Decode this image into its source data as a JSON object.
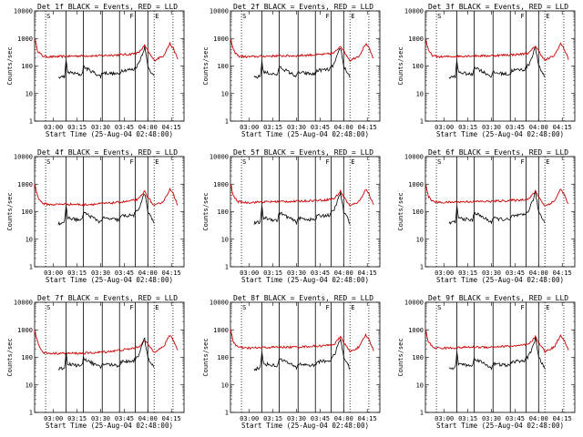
{
  "figure": {
    "panel_titles": [
      "Det 1f BLACK = Events, RED = LLD",
      "Det 2f BLACK = Events, RED = LLD",
      "Det 3f BLACK = Events, RED = LLD",
      "Det 4f BLACK = Events, RED = LLD",
      "Det 5f BLACK = Events, RED = LLD",
      "Det 6f BLACK = Events, RED = LLD",
      "Det 7f BLACK = Events, RED = LLD",
      "Det 8f BLACK = Events, RED = LLD",
      "Det 9f BLACK = Events, RED = LLD"
    ],
    "ylabel": "Counts/sec",
    "xlabel": "Start Time (25-Aug-04 02:48:00)",
    "xtick_labels": [
      "03:00",
      "03:15",
      "03:30",
      "03:45",
      "04:00",
      "04:15"
    ],
    "ytick_labels": [
      "1",
      "10",
      "100",
      "1000",
      "10000"
    ],
    "corner_labels": [
      "S",
      "F",
      "E"
    ]
  },
  "colors": {
    "events": "#000000",
    "lld": "#cc0000"
  },
  "chart_data": {
    "type": "line",
    "layout": "3x3 grid",
    "x_unit": "minutes since 02:48:00",
    "xlim": [
      0,
      95
    ],
    "ylim": [
      1,
      10000
    ],
    "yscale": "log",
    "xticks": [
      12,
      27,
      42,
      57,
      72,
      87
    ],
    "dotted_vlines": [
      7,
      76,
      88
    ],
    "solid_vlines": [
      20,
      31,
      43,
      54,
      64,
      72
    ],
    "panels": [
      {
        "det": "1f",
        "lld_points": [
          [
            0,
            1000
          ],
          [
            2,
            350
          ],
          [
            5,
            230
          ],
          [
            10,
            215
          ],
          [
            20,
            225
          ],
          [
            30,
            235
          ],
          [
            40,
            235
          ],
          [
            50,
            250
          ],
          [
            60,
            265
          ],
          [
            66,
            300
          ],
          [
            70,
            550
          ],
          [
            72,
            350
          ],
          [
            76,
            160
          ],
          [
            82,
            240
          ],
          [
            86,
            650
          ],
          [
            88,
            450
          ],
          [
            91,
            180
          ]
        ],
        "events_points": [
          [
            15,
            38
          ],
          [
            19,
            42
          ],
          [
            20,
            150
          ],
          [
            21,
            60
          ],
          [
            30,
            48
          ],
          [
            31,
            95
          ],
          [
            42,
            42
          ],
          [
            43,
            58
          ],
          [
            54,
            50
          ],
          [
            55,
            70
          ],
          [
            63,
            75
          ],
          [
            66,
            120
          ],
          [
            70,
            480
          ],
          [
            72,
            100
          ],
          [
            76,
            40
          ]
        ]
      },
      {
        "det": "2f",
        "lld_points": [
          [
            0,
            1000
          ],
          [
            2,
            350
          ],
          [
            5,
            230
          ],
          [
            10,
            215
          ],
          [
            20,
            225
          ],
          [
            30,
            235
          ],
          [
            40,
            235
          ],
          [
            50,
            250
          ],
          [
            60,
            265
          ],
          [
            66,
            300
          ],
          [
            70,
            550
          ],
          [
            72,
            350
          ],
          [
            76,
            160
          ],
          [
            82,
            240
          ],
          [
            86,
            650
          ],
          [
            88,
            450
          ],
          [
            91,
            180
          ]
        ],
        "events_points": [
          [
            15,
            38
          ],
          [
            19,
            42
          ],
          [
            20,
            150
          ],
          [
            21,
            60
          ],
          [
            30,
            48
          ],
          [
            31,
            95
          ],
          [
            42,
            42
          ],
          [
            43,
            58
          ],
          [
            54,
            50
          ],
          [
            55,
            70
          ],
          [
            63,
            75
          ],
          [
            66,
            120
          ],
          [
            70,
            480
          ],
          [
            72,
            100
          ],
          [
            76,
            40
          ]
        ]
      },
      {
        "det": "3f",
        "lld_points": [
          [
            0,
            1000
          ],
          [
            2,
            350
          ],
          [
            5,
            230
          ],
          [
            10,
            215
          ],
          [
            20,
            225
          ],
          [
            30,
            235
          ],
          [
            40,
            235
          ],
          [
            50,
            250
          ],
          [
            60,
            265
          ],
          [
            66,
            300
          ],
          [
            70,
            550
          ],
          [
            72,
            350
          ],
          [
            76,
            160
          ],
          [
            82,
            240
          ],
          [
            86,
            650
          ],
          [
            88,
            450
          ],
          [
            91,
            180
          ]
        ],
        "events_points": [
          [
            15,
            38
          ],
          [
            19,
            42
          ],
          [
            20,
            150
          ],
          [
            21,
            60
          ],
          [
            30,
            48
          ],
          [
            31,
            95
          ],
          [
            42,
            42
          ],
          [
            43,
            58
          ],
          [
            54,
            50
          ],
          [
            55,
            70
          ],
          [
            63,
            75
          ],
          [
            66,
            120
          ],
          [
            70,
            480
          ],
          [
            72,
            100
          ],
          [
            76,
            40
          ]
        ]
      },
      {
        "det": "4f",
        "lld_points": [
          [
            0,
            1000
          ],
          [
            2,
            350
          ],
          [
            5,
            200
          ],
          [
            10,
            180
          ],
          [
            20,
            190
          ],
          [
            30,
            180
          ],
          [
            40,
            190
          ],
          [
            50,
            210
          ],
          [
            60,
            240
          ],
          [
            66,
            280
          ],
          [
            70,
            550
          ],
          [
            72,
            340
          ],
          [
            76,
            160
          ],
          [
            82,
            240
          ],
          [
            86,
            650
          ],
          [
            88,
            450
          ],
          [
            91,
            180
          ]
        ],
        "events_points": [
          [
            15,
            38
          ],
          [
            19,
            42
          ],
          [
            20,
            150
          ],
          [
            21,
            60
          ],
          [
            30,
            48
          ],
          [
            31,
            95
          ],
          [
            42,
            42
          ],
          [
            43,
            58
          ],
          [
            54,
            50
          ],
          [
            55,
            70
          ],
          [
            63,
            75
          ],
          [
            66,
            120
          ],
          [
            70,
            480
          ],
          [
            72,
            100
          ],
          [
            76,
            40
          ]
        ]
      },
      {
        "det": "5f",
        "lld_points": [
          [
            0,
            1000
          ],
          [
            2,
            350
          ],
          [
            5,
            230
          ],
          [
            10,
            215
          ],
          [
            20,
            225
          ],
          [
            30,
            235
          ],
          [
            40,
            235
          ],
          [
            50,
            250
          ],
          [
            60,
            265
          ],
          [
            66,
            300
          ],
          [
            70,
            550
          ],
          [
            72,
            350
          ],
          [
            76,
            160
          ],
          [
            82,
            240
          ],
          [
            86,
            650
          ],
          [
            88,
            450
          ],
          [
            91,
            180
          ]
        ],
        "events_points": [
          [
            15,
            38
          ],
          [
            19,
            42
          ],
          [
            20,
            150
          ],
          [
            21,
            60
          ],
          [
            30,
            48
          ],
          [
            31,
            95
          ],
          [
            42,
            42
          ],
          [
            43,
            58
          ],
          [
            54,
            50
          ],
          [
            55,
            70
          ],
          [
            63,
            75
          ],
          [
            66,
            120
          ],
          [
            70,
            480
          ],
          [
            72,
            100
          ],
          [
            76,
            40
          ]
        ]
      },
      {
        "det": "6f",
        "lld_points": [
          [
            0,
            1000
          ],
          [
            2,
            350
          ],
          [
            5,
            230
          ],
          [
            10,
            215
          ],
          [
            20,
            225
          ],
          [
            30,
            235
          ],
          [
            40,
            235
          ],
          [
            50,
            250
          ],
          [
            60,
            265
          ],
          [
            66,
            300
          ],
          [
            70,
            550
          ],
          [
            72,
            350
          ],
          [
            76,
            160
          ],
          [
            82,
            240
          ],
          [
            86,
            650
          ],
          [
            88,
            450
          ],
          [
            91,
            180
          ]
        ],
        "events_points": [
          [
            15,
            38
          ],
          [
            19,
            42
          ],
          [
            20,
            150
          ],
          [
            21,
            60
          ],
          [
            30,
            48
          ],
          [
            31,
            95
          ],
          [
            42,
            42
          ],
          [
            43,
            58
          ],
          [
            54,
            50
          ],
          [
            55,
            70
          ],
          [
            63,
            75
          ],
          [
            66,
            120
          ],
          [
            70,
            480
          ],
          [
            72,
            100
          ],
          [
            76,
            40
          ]
        ]
      },
      {
        "det": "7f",
        "lld_points": [
          [
            0,
            1000
          ],
          [
            2,
            350
          ],
          [
            5,
            150
          ],
          [
            10,
            140
          ],
          [
            20,
            140
          ],
          [
            30,
            140
          ],
          [
            40,
            150
          ],
          [
            50,
            170
          ],
          [
            60,
            200
          ],
          [
            66,
            240
          ],
          [
            70,
            400
          ],
          [
            72,
            300
          ],
          [
            76,
            160
          ],
          [
            82,
            240
          ],
          [
            86,
            650
          ],
          [
            88,
            450
          ],
          [
            91,
            180
          ]
        ],
        "events_points": [
          [
            15,
            38
          ],
          [
            19,
            42
          ],
          [
            20,
            150
          ],
          [
            21,
            60
          ],
          [
            30,
            48
          ],
          [
            31,
            95
          ],
          [
            42,
            42
          ],
          [
            43,
            58
          ],
          [
            54,
            50
          ],
          [
            55,
            70
          ],
          [
            63,
            75
          ],
          [
            66,
            120
          ],
          [
            70,
            480
          ],
          [
            72,
            100
          ],
          [
            76,
            40
          ]
        ]
      },
      {
        "det": "8f",
        "lld_points": [
          [
            0,
            1000
          ],
          [
            2,
            350
          ],
          [
            5,
            230
          ],
          [
            10,
            215
          ],
          [
            20,
            225
          ],
          [
            30,
            235
          ],
          [
            40,
            235
          ],
          [
            50,
            250
          ],
          [
            60,
            265
          ],
          [
            66,
            300
          ],
          [
            70,
            550
          ],
          [
            72,
            350
          ],
          [
            76,
            160
          ],
          [
            82,
            240
          ],
          [
            86,
            650
          ],
          [
            88,
            450
          ],
          [
            91,
            180
          ]
        ],
        "events_points": [
          [
            15,
            38
          ],
          [
            19,
            42
          ],
          [
            20,
            150
          ],
          [
            21,
            60
          ],
          [
            30,
            48
          ],
          [
            31,
            95
          ],
          [
            42,
            42
          ],
          [
            43,
            58
          ],
          [
            54,
            50
          ],
          [
            55,
            70
          ],
          [
            63,
            75
          ],
          [
            66,
            120
          ],
          [
            70,
            480
          ],
          [
            72,
            100
          ],
          [
            76,
            40
          ]
        ]
      },
      {
        "det": "9f",
        "lld_points": [
          [
            0,
            1000
          ],
          [
            2,
            350
          ],
          [
            5,
            230
          ],
          [
            10,
            215
          ],
          [
            20,
            225
          ],
          [
            30,
            235
          ],
          [
            40,
            235
          ],
          [
            50,
            250
          ],
          [
            60,
            265
          ],
          [
            66,
            300
          ],
          [
            70,
            550
          ],
          [
            72,
            350
          ],
          [
            76,
            160
          ],
          [
            82,
            240
          ],
          [
            86,
            650
          ],
          [
            88,
            450
          ],
          [
            91,
            180
          ]
        ],
        "events_points": [
          [
            15,
            38
          ],
          [
            19,
            42
          ],
          [
            20,
            150
          ],
          [
            21,
            60
          ],
          [
            30,
            48
          ],
          [
            31,
            95
          ],
          [
            42,
            42
          ],
          [
            43,
            58
          ],
          [
            54,
            50
          ],
          [
            55,
            70
          ],
          [
            63,
            75
          ],
          [
            66,
            120
          ],
          [
            70,
            480
          ],
          [
            72,
            100
          ],
          [
            76,
            40
          ]
        ]
      }
    ]
  }
}
